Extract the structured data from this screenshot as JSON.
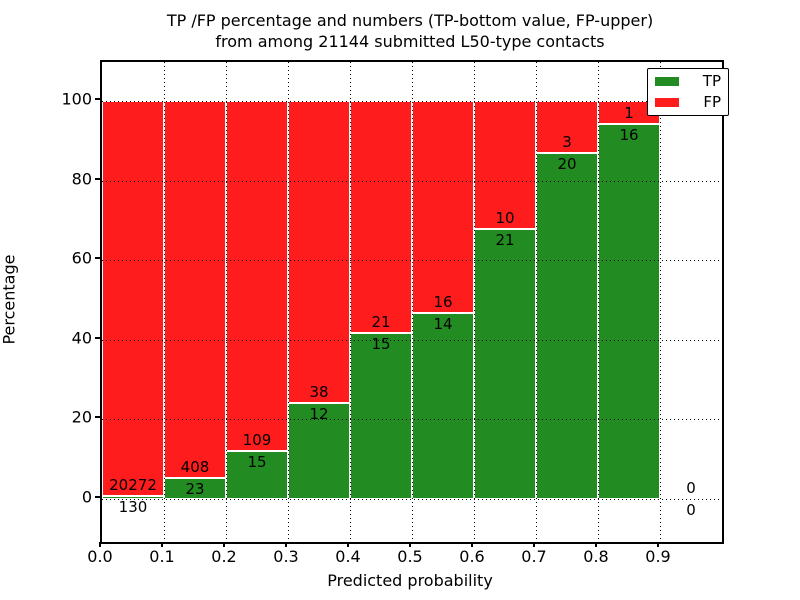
{
  "title": {
    "line1": "TP /FP percentage and numbers (TP-bottom value, FP-upper)",
    "line2": "from among 21144 submitted L50-type contacts"
  },
  "axes": {
    "xlabel": "Predicted probability",
    "ylabel": "Percentage",
    "x_tick_labels": [
      "0.0",
      "0.1",
      "0.2",
      "0.3",
      "0.4",
      "0.5",
      "0.6",
      "0.7",
      "0.8",
      "0.9"
    ],
    "y_tick_labels": [
      "0",
      "20",
      "40",
      "60",
      "80",
      "100"
    ],
    "grid": "dotted"
  },
  "legend": {
    "position": "upper-right",
    "items": [
      {
        "label": "TP",
        "color": "#228b22"
      },
      {
        "label": "FP",
        "color": "#ff1c1c"
      }
    ]
  },
  "chart_data": {
    "type": "bar",
    "stacked": true,
    "normalized_to_percent": true,
    "title": "TP /FP percentage and numbers (TP-bottom value, FP-upper) from among 21144 submitted L50-type contacts",
    "xlabel": "Predicted probability",
    "ylabel": "Percentage",
    "xlim": [
      0.0,
      1.0
    ],
    "ylim": [
      -11,
      110
    ],
    "x_tick_values": [
      0.0,
      0.1,
      0.2,
      0.3,
      0.4,
      0.5,
      0.6,
      0.7,
      0.8,
      0.9
    ],
    "y_tick_values": [
      0,
      20,
      40,
      60,
      80,
      100
    ],
    "bin_width": 0.1,
    "bin_starts": [
      0.0,
      0.1,
      0.2,
      0.3,
      0.4,
      0.5,
      0.6,
      0.7,
      0.8,
      0.9
    ],
    "series": [
      {
        "name": "TP",
        "color": "#228b22",
        "counts": [
          130,
          23,
          15,
          12,
          15,
          14,
          21,
          20,
          16,
          0
        ]
      },
      {
        "name": "FP",
        "color": "#ff1c1c",
        "counts": [
          20272,
          408,
          109,
          38,
          21,
          16,
          10,
          3,
          1,
          0
        ]
      }
    ],
    "annotation_rule": "TP count printed below TP/FP boundary, FP count printed above it"
  },
  "colors": {
    "tp": "#228b22",
    "fp": "#ff1c1c",
    "background": "#ffffff",
    "grid": "#000000",
    "bar_edge": "#ffffff",
    "text": "#000000"
  }
}
